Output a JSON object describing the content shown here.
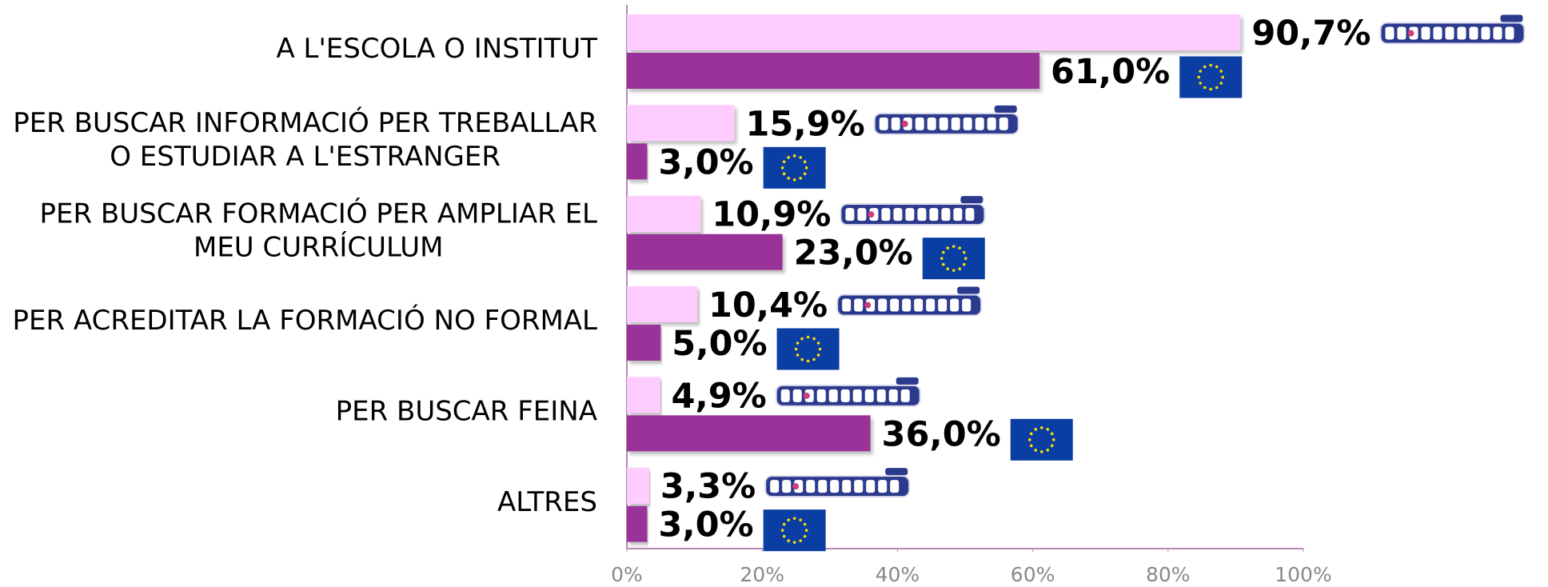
{
  "chart_data": {
    "type": "hbar",
    "categories": [
      "A L'ESCOLA O INSTITUT",
      "PER BUSCAR INFORMACIÓ PER TREBALLAR\nO ESTUDIAR A L'ESTRANGER",
      "PER BUSCAR FORMACIÓ PER AMPLIAR EL\nMEU CURRÍCULUM",
      "PER ACREDITAR LA FORMACIÓ NO FORMAL",
      "PER BUSCAR FEINA",
      "ALTRES"
    ],
    "series": [
      {
        "color": "#ffccff",
        "icon": "adolescents",
        "values": [
          90.7,
          15.9,
          10.9,
          10.4,
          4.9,
          3.3
        ],
        "value_labels": [
          "90,7%",
          "15,9%",
          "10,9%",
          "10,4%",
          "4,9%",
          "3,3%"
        ]
      },
      {
        "color": "#993399",
        "icon": "eu",
        "values": [
          61.0,
          3.0,
          23.0,
          5.0,
          36.0,
          3.0
        ],
        "value_labels": [
          "61,0%",
          "3,0%",
          "23,0%",
          "5,0%",
          "36,0%",
          "3,0%"
        ]
      }
    ],
    "xlim": [
      0,
      100
    ],
    "xticks": [
      {
        "value": 0,
        "label": "0%"
      },
      {
        "value": 20,
        "label": "20%"
      },
      {
        "value": 40,
        "label": "40%"
      },
      {
        "value": 60,
        "label": "60%"
      },
      {
        "value": 80,
        "label": "80%"
      },
      {
        "value": 100,
        "label": "100%"
      }
    ]
  }
}
